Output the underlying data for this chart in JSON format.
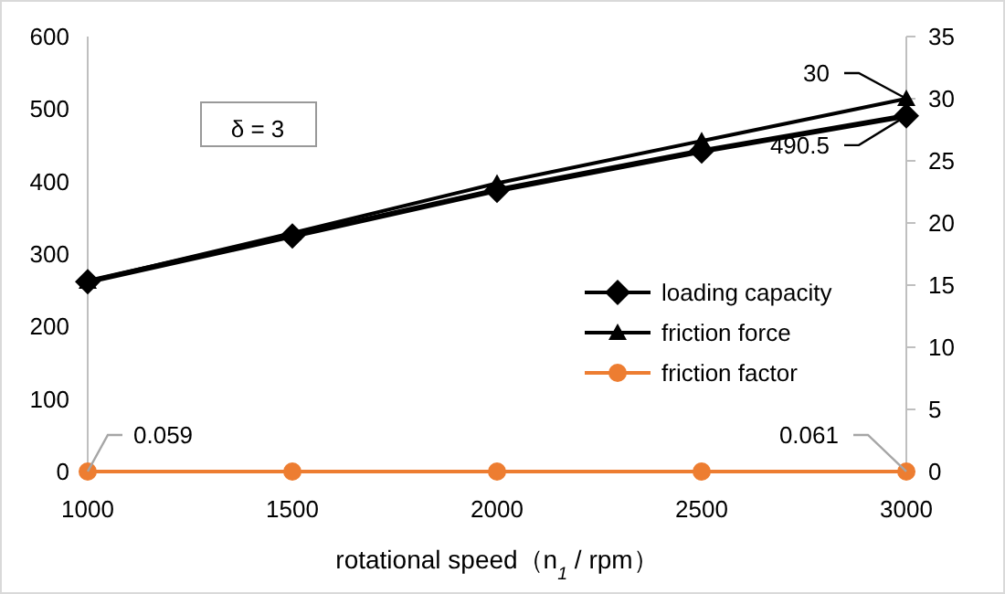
{
  "chart_data": {
    "type": "line",
    "xlabel": "rotational speed（n$_{1}$ / rpm）",
    "x": [
      1000,
      1500,
      2000,
      2500,
      3000
    ],
    "xlim": [
      1000,
      3000
    ],
    "xticks": [
      1000,
      1500,
      2000,
      2500,
      3000
    ],
    "ylim": [
      0,
      600
    ],
    "yticks": [
      0,
      100,
      200,
      300,
      400,
      500,
      600
    ],
    "y2lim": [
      0,
      35
    ],
    "y2ticks": [
      0,
      5,
      10,
      15,
      20,
      25,
      30,
      35
    ],
    "grid": false,
    "legend": "right",
    "annotations": [
      "δ = 3"
    ],
    "series": [
      {
        "name": "loading capacity",
        "color": "#000000",
        "marker": "diamond",
        "values": [
          262,
          325,
          388,
          442,
          490.5
        ],
        "value_labels": [
          null,
          null,
          null,
          null,
          "490.5"
        ]
      },
      {
        "name": "friction force",
        "color": "#000000",
        "marker": "triangle",
        "axis": "y2",
        "values": [
          15.3,
          19.2,
          23.2,
          26.6,
          30
        ],
        "value_labels": [
          null,
          null,
          null,
          null,
          "30"
        ]
      },
      {
        "name": "friction factor",
        "color": "#ed7d31",
        "marker": "circle",
        "values": [
          0.059,
          0,
          0,
          0,
          0.061
        ],
        "value_labels": [
          "0.059",
          null,
          null,
          null,
          "0.061"
        ]
      }
    ]
  }
}
